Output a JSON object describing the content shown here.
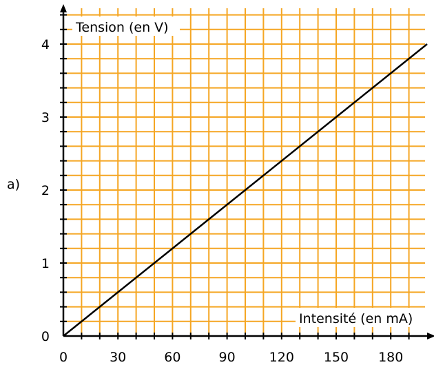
{
  "panel_label": "a)",
  "chart_data": {
    "type": "line",
    "title": "",
    "xlabel": "Intensité (en mA)",
    "ylabel": "Tension (en V)",
    "xlim": [
      0,
      200
    ],
    "ylim": [
      0,
      4.4
    ],
    "x_ticks": [
      0,
      30,
      60,
      90,
      120,
      150,
      180
    ],
    "x_tick_labels": [
      "0",
      "30",
      "60",
      "90",
      "120",
      "150",
      "180"
    ],
    "y_ticks": [
      0,
      1,
      2,
      3,
      4
    ],
    "y_tick_labels": [
      "0",
      "1",
      "2",
      "3",
      "4"
    ],
    "grid": true,
    "grid_color": "#f5a623",
    "line_color": "#000000",
    "series": [
      {
        "x": [
          0,
          200
        ],
        "y": [
          0,
          4
        ]
      }
    ]
  }
}
